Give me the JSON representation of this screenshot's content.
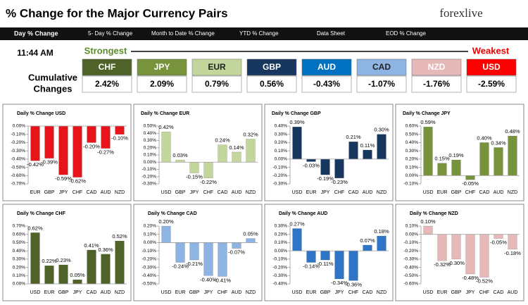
{
  "header": {
    "title": "% Change for the Major Currency Pairs",
    "logo": "forexlive",
    "tabs": [
      "Day % Change",
      "5- Day % Change",
      "Month to Date % Change",
      "YTD % Change",
      "Data Sheet",
      "EOD % Change"
    ],
    "time": "11:44 AM",
    "strongest": "Strongest",
    "weakest": "Weakest",
    "cumulative": [
      "Cumulative",
      "Changes"
    ],
    "currencies": [
      {
        "name": "CHF",
        "value": "2.42%",
        "color": "#4f6228"
      },
      {
        "name": "JPY",
        "value": "2.09%",
        "color": "#77933c"
      },
      {
        "name": "EUR",
        "value": "0.79%",
        "color": "#c3d69b"
      },
      {
        "name": "GBP",
        "value": "0.56%",
        "color": "#17375e"
      },
      {
        "name": "AUD",
        "value": "-0.43%",
        "color": "#0070c0"
      },
      {
        "name": "CAD",
        "value": "-1.07%",
        "color": "#8db4e2"
      },
      {
        "name": "NZD",
        "value": "-1.76%",
        "color": "#e6b8b7"
      },
      {
        "name": "USD",
        "value": "-2.59%",
        "color": "#ff0000"
      }
    ]
  },
  "chart_data": [
    {
      "type": "bar",
      "title": "Daily % Change USD",
      "color": "#e8141b",
      "categories": [
        "EUR",
        "GBP",
        "JPY",
        "CHF",
        "CAD",
        "AUD",
        "NZD"
      ],
      "values": [
        -0.42,
        -0.39,
        -0.59,
        -0.62,
        -0.2,
        -0.27,
        -0.1
      ],
      "value_labels": [
        "-0.42%",
        "-0.39%",
        "-0.59%",
        "-0.62%",
        "-0.20%",
        "-0.27%",
        "-0.10%"
      ],
      "ylim": [
        -0.7,
        0
      ],
      "yticks": [
        {
          "value": 0,
          "label": "0.00%"
        },
        {
          "value": -0.1,
          "label": "-0.10%"
        },
        {
          "value": -0.2,
          "label": "-0.20%"
        },
        {
          "value": -0.3,
          "label": "-0.30%"
        },
        {
          "value": -0.4,
          "label": "-0.40%"
        },
        {
          "value": -0.5,
          "label": "-0.50%"
        },
        {
          "value": -0.6,
          "label": "-0.60%"
        },
        {
          "value": -0.7,
          "label": "-0.70%"
        }
      ]
    },
    {
      "type": "bar",
      "title": "Daily % Change EUR",
      "color": "#c3d69b",
      "categories": [
        "USD",
        "GBP",
        "JPY",
        "CHF",
        "CAD",
        "AUD",
        "NZD"
      ],
      "values": [
        0.42,
        0.03,
        -0.15,
        -0.22,
        0.24,
        0.14,
        0.32
      ],
      "value_labels": [
        "0.42%",
        "0.03%",
        "-0.15%",
        "-0.22%",
        "0.24%",
        "0.14%",
        "0.32%"
      ],
      "ylim": [
        -0.3,
        0.5
      ],
      "yticks": [
        {
          "value": 0.5,
          "label": "0.50%"
        },
        {
          "value": 0.4,
          "label": "0.40%"
        },
        {
          "value": 0.3,
          "label": "0.30%"
        },
        {
          "value": 0.2,
          "label": "0.20%"
        },
        {
          "value": 0.1,
          "label": "0.10%"
        },
        {
          "value": 0,
          "label": "0.00%"
        },
        {
          "value": -0.1,
          "label": "-0.10%"
        },
        {
          "value": -0.2,
          "label": "-0.20%"
        },
        {
          "value": -0.3,
          "label": "-0.30%"
        }
      ]
    },
    {
      "type": "bar",
      "title": "Daily % Change GBP",
      "color": "#17375e",
      "categories": [
        "USD",
        "EUR",
        "JPY",
        "CHF",
        "CAD",
        "AUD",
        "NZD"
      ],
      "values": [
        0.39,
        -0.03,
        -0.19,
        -0.23,
        0.21,
        0.11,
        0.3
      ],
      "value_labels": [
        "0.39%",
        "-0.03%",
        "-0.19%",
        "-0.23%",
        "0.21%",
        "0.11%",
        "0.30%"
      ],
      "ylim": [
        -0.3,
        0.4
      ],
      "yticks": [
        {
          "value": 0.4,
          "label": "0.40%"
        },
        {
          "value": 0.3,
          "label": "0.30%"
        },
        {
          "value": 0.2,
          "label": "0.20%"
        },
        {
          "value": 0.1,
          "label": "0.10%"
        },
        {
          "value": 0,
          "label": "0.00%"
        },
        {
          "value": -0.1,
          "label": "-0.10%"
        },
        {
          "value": -0.2,
          "label": "-0.20%"
        },
        {
          "value": -0.3,
          "label": "-0.30%"
        }
      ]
    },
    {
      "type": "bar",
      "title": "Daily % Change JPY",
      "color": "#77933c",
      "categories": [
        "USD",
        "EUR",
        "GBP",
        "CHF",
        "CAD",
        "AUD",
        "NZD"
      ],
      "values": [
        0.59,
        0.15,
        0.19,
        -0.05,
        0.4,
        0.34,
        0.48
      ],
      "value_labels": [
        "0.59%",
        "0.15%",
        "0.19%",
        "-0.05%",
        "0.40%",
        "0.34%",
        "0.48%"
      ],
      "ylim": [
        -0.1,
        0.6
      ],
      "yticks": [
        {
          "value": 0.6,
          "label": "0.60%"
        },
        {
          "value": 0.5,
          "label": "0.50%"
        },
        {
          "value": 0.4,
          "label": "0.40%"
        },
        {
          "value": 0.3,
          "label": "0.30%"
        },
        {
          "value": 0.2,
          "label": "0.20%"
        },
        {
          "value": 0.1,
          "label": "0.10%"
        },
        {
          "value": 0,
          "label": "0.00%"
        },
        {
          "value": -0.1,
          "label": "-0.10%"
        }
      ]
    },
    {
      "type": "bar",
      "title": "Daily % Change CHF",
      "color": "#4f6228",
      "categories": [
        "USD",
        "EUR",
        "GBP",
        "JPY",
        "CAD",
        "AUD",
        "NZD"
      ],
      "values": [
        0.62,
        0.22,
        0.23,
        0.05,
        0.41,
        0.36,
        0.52
      ],
      "value_labels": [
        "0.62%",
        "0.22%",
        "0.23%",
        "0.05%",
        "0.41%",
        "0.36%",
        "0.52%"
      ],
      "ylim": [
        0,
        0.7
      ],
      "yticks": [
        {
          "value": 0.7,
          "label": "0.70%"
        },
        {
          "value": 0.6,
          "label": "0.60%"
        },
        {
          "value": 0.5,
          "label": "0.50%"
        },
        {
          "value": 0.4,
          "label": "0.40%"
        },
        {
          "value": 0.3,
          "label": "0.30%"
        },
        {
          "value": 0.2,
          "label": "0.20%"
        },
        {
          "value": 0.1,
          "label": "0.10%"
        },
        {
          "value": 0,
          "label": "0.00%"
        }
      ]
    },
    {
      "type": "bar",
      "title": "Daily % Change CAD",
      "color": "#8db4e2",
      "categories": [
        "USD",
        "EUR",
        "GBP",
        "JPY",
        "CHF",
        "AUD",
        "NZD"
      ],
      "values": [
        0.2,
        -0.24,
        -0.21,
        -0.4,
        -0.41,
        -0.07,
        0.05
      ],
      "value_labels": [
        "0.20%",
        "-0.24%",
        "-0.21%",
        "-0.40%",
        "-0.41%",
        "-0.07%",
        "0.05%"
      ],
      "ylim": [
        -0.5,
        0.2
      ],
      "yticks": [
        {
          "value": 0.2,
          "label": "0.20%"
        },
        {
          "value": 0.1,
          "label": "0.10%"
        },
        {
          "value": 0,
          "label": "0.00%"
        },
        {
          "value": -0.1,
          "label": "-0.10%"
        },
        {
          "value": -0.2,
          "label": "-0.20%"
        },
        {
          "value": -0.3,
          "label": "-0.30%"
        },
        {
          "value": -0.4,
          "label": "-0.40%"
        },
        {
          "value": -0.5,
          "label": "-0.50%"
        }
      ]
    },
    {
      "type": "bar",
      "title": "Daily % Change AUD",
      "color": "#2e75c6",
      "categories": [
        "USD",
        "EUR",
        "GBP",
        "JPY",
        "CHF",
        "CAD",
        "NZD"
      ],
      "values": [
        0.27,
        -0.14,
        -0.11,
        -0.34,
        -0.36,
        0.07,
        0.18
      ],
      "value_labels": [
        "0.27%",
        "-0.14%",
        "-0.11%",
        "-0.34%",
        "-0.36%",
        "0.07%",
        "0.18%"
      ],
      "ylim": [
        -0.4,
        0.3
      ],
      "yticks": [
        {
          "value": 0.3,
          "label": "0.30%"
        },
        {
          "value": 0.2,
          "label": "0.20%"
        },
        {
          "value": 0.1,
          "label": "0.10%"
        },
        {
          "value": 0,
          "label": "0.00%"
        },
        {
          "value": -0.1,
          "label": "-0.10%"
        },
        {
          "value": -0.2,
          "label": "-0.20%"
        },
        {
          "value": -0.3,
          "label": "-0.30%"
        },
        {
          "value": -0.4,
          "label": "-0.40%"
        }
      ]
    },
    {
      "type": "bar",
      "title": "Daily % Change NZD",
      "color": "#e6b8b7",
      "categories": [
        "USD",
        "EUR",
        "GBP",
        "JPY",
        "CHF",
        "CAD",
        "AUD"
      ],
      "values": [
        0.1,
        -0.32,
        -0.3,
        -0.48,
        -0.52,
        -0.05,
        -0.18
      ],
      "value_labels": [
        "0.10%",
        "-0.32%",
        "-0.30%",
        "-0.48%",
        "-0.52%",
        "-0.05%",
        "-0.18%"
      ],
      "ylim": [
        -0.6,
        0.1
      ],
      "yticks": [
        {
          "value": 0.1,
          "label": "0.10%"
        },
        {
          "value": 0,
          "label": "0.00%"
        },
        {
          "value": -0.1,
          "label": "-0.10%"
        },
        {
          "value": -0.2,
          "label": "-0.20%"
        },
        {
          "value": -0.3,
          "label": "-0.30%"
        },
        {
          "value": -0.4,
          "label": "-0.40%"
        },
        {
          "value": -0.5,
          "label": "-0.50%"
        },
        {
          "value": -0.6,
          "label": "-0.60%"
        }
      ]
    }
  ]
}
